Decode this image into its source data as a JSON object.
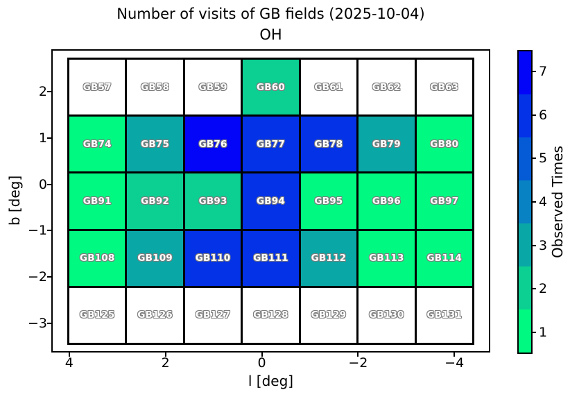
{
  "figure": {
    "title_line1": "Number of visits of GB fields (2025-10-04)",
    "title_line2": "OH"
  },
  "axes": {
    "xlabel": "l [deg]",
    "ylabel": "b [deg]"
  },
  "colorbar": {
    "label": "Observed Times",
    "tick_values": [
      1,
      2,
      3,
      4,
      5,
      6,
      7
    ]
  },
  "chart_data": {
    "type": "heatmap",
    "title": "Number of visits of GB fields (2025-10-04)",
    "subtitle": "OH",
    "xlabel": "l [deg]",
    "ylabel": "b [deg]",
    "x_ticks": [
      4,
      2,
      0,
      -2,
      -4
    ],
    "y_ticks": [
      2,
      1,
      0,
      -1,
      -2,
      -3
    ],
    "xlim": [
      4.37,
      -4.75
    ],
    "ylim": [
      -3.64,
      2.92
    ],
    "grid_on": false,
    "colorbar_label": "Observed Times",
    "colorbar_ticks": [
      1,
      2,
      3,
      4,
      5,
      6,
      7
    ],
    "value_colors": {
      "0": "#ffffff",
      "1": "#00fa81",
      "2": "#0ccf92",
      "3": "#09a8a6",
      "4": "#0982c3",
      "5": "#045bd5",
      "6": "#0332e7",
      "7": "#0305f9"
    },
    "unobserved_value": 0,
    "rows": [
      {
        "fields": [
          {
            "label": "GB57",
            "visits": 0
          },
          {
            "label": "GB58",
            "visits": 0
          },
          {
            "label": "GB59",
            "visits": 0
          },
          {
            "label": "GB60",
            "visits": 2
          },
          {
            "label": "GB61",
            "visits": 0
          },
          {
            "label": "GB62",
            "visits": 0
          },
          {
            "label": "GB63",
            "visits": 0
          }
        ]
      },
      {
        "fields": [
          {
            "label": "GB74",
            "visits": 1
          },
          {
            "label": "GB75",
            "visits": 3
          },
          {
            "label": "GB76",
            "visits": 7
          },
          {
            "label": "GB77",
            "visits": 6
          },
          {
            "label": "GB78",
            "visits": 6
          },
          {
            "label": "GB79",
            "visits": 3
          },
          {
            "label": "GB80",
            "visits": 1
          }
        ]
      },
      {
        "fields": [
          {
            "label": "GB91",
            "visits": 1
          },
          {
            "label": "GB92",
            "visits": 2
          },
          {
            "label": "GB93",
            "visits": 2
          },
          {
            "label": "GB94",
            "visits": 6
          },
          {
            "label": "GB95",
            "visits": 1
          },
          {
            "label": "GB96",
            "visits": 1
          },
          {
            "label": "GB97",
            "visits": 1
          }
        ]
      },
      {
        "fields": [
          {
            "label": "GB108",
            "visits": 1
          },
          {
            "label": "GB109",
            "visits": 3
          },
          {
            "label": "GB110",
            "visits": 6
          },
          {
            "label": "GB111",
            "visits": 6
          },
          {
            "label": "GB112",
            "visits": 3
          },
          {
            "label": "GB113",
            "visits": 1
          },
          {
            "label": "GB114",
            "visits": 1
          }
        ]
      },
      {
        "fields": [
          {
            "label": "GB125",
            "visits": 0
          },
          {
            "label": "GB126",
            "visits": 0
          },
          {
            "label": "GB127",
            "visits": 0
          },
          {
            "label": "GB128",
            "visits": 0
          },
          {
            "label": "GB129",
            "visits": 0
          },
          {
            "label": "GB130",
            "visits": 0
          },
          {
            "label": "GB131",
            "visits": 0
          }
        ]
      }
    ]
  }
}
